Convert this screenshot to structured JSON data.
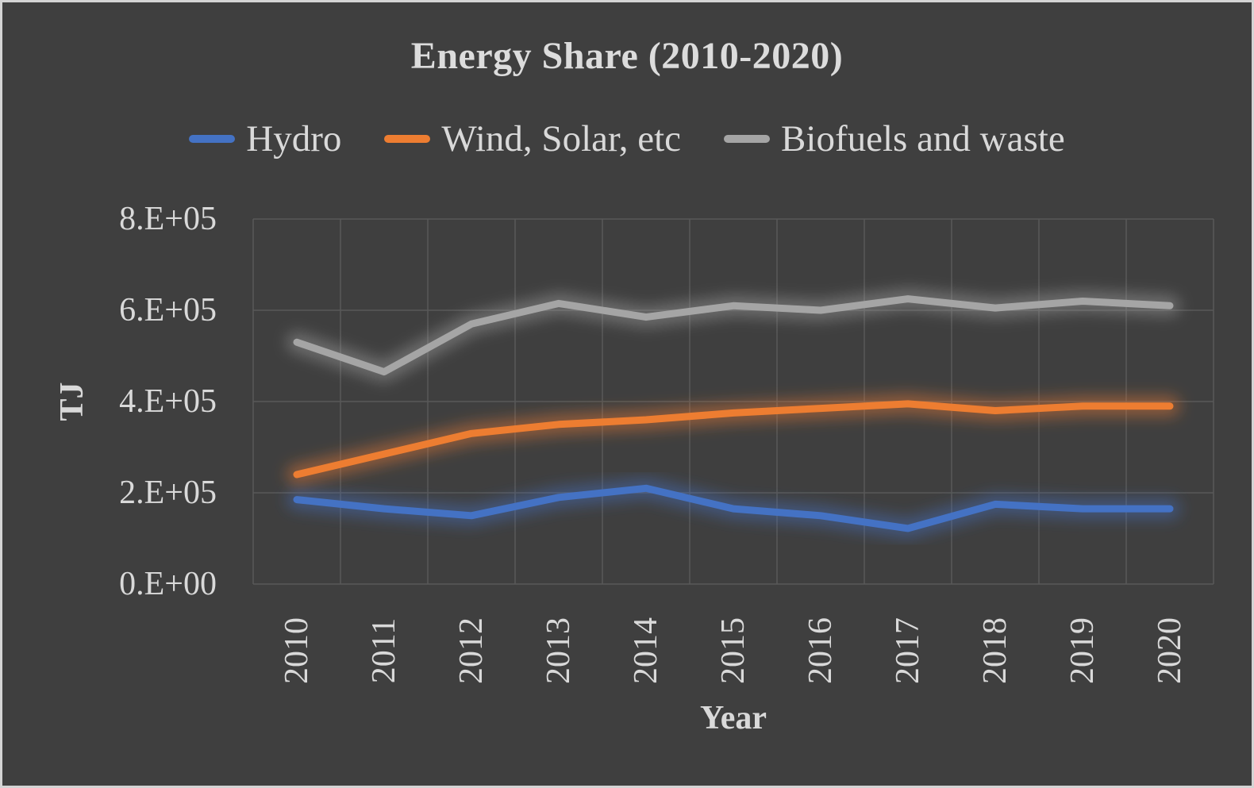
{
  "window": {
    "background_color": "#3F3F3F",
    "border_color": "#D4D4D4",
    "text_color": "#D9D9D9",
    "gridline_color": "#595959"
  },
  "chart_data": {
    "type": "line",
    "title": "Energy Share (2010-2020)",
    "xlabel": "Year",
    "ylabel": "TJ",
    "x": [
      "2010",
      "2011",
      "2012",
      "2013",
      "2014",
      "2015",
      "2016",
      "2017",
      "2018",
      "2019",
      "2020"
    ],
    "series": [
      {
        "name": "Hydro",
        "color": "#4472C4",
        "values": [
          185000,
          165000,
          150000,
          190000,
          210000,
          165000,
          150000,
          122000,
          175000,
          165000,
          165000
        ]
      },
      {
        "name": "Wind, Solar, etc",
        "color": "#ED7D31",
        "values": [
          240000,
          285000,
          330000,
          350000,
          360000,
          375000,
          385000,
          395000,
          380000,
          390000,
          390000
        ]
      },
      {
        "name": "Biofuels and waste",
        "color": "#A5A5A5",
        "values": [
          530000,
          465000,
          570000,
          615000,
          585000,
          610000,
          600000,
          625000,
          605000,
          620000,
          610000
        ]
      }
    ],
    "y_axis": {
      "min": 0,
      "max": 800000,
      "tick_step": 200000,
      "tick_labels": [
        "0.E+00",
        "2.E+05",
        "4.E+05",
        "6.E+05",
        "8.E+05"
      ]
    },
    "grid": true,
    "legend_position": "top",
    "units": "TJ"
  }
}
